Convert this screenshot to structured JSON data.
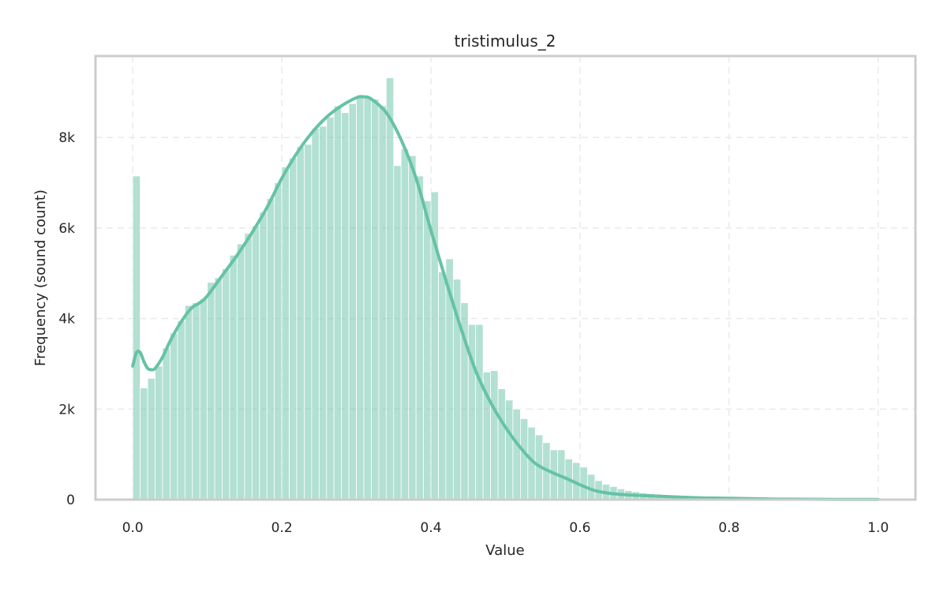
{
  "chart_data": {
    "type": "bar",
    "title": "tristimulus_2",
    "xlabel": "Value",
    "ylabel": "Frequency (sound count)",
    "xlim": [
      -0.05,
      1.05
    ],
    "ylim": [
      0,
      9800
    ],
    "x_ticks": [
      {
        "value": 0.0,
        "label": "0.0"
      },
      {
        "value": 0.2,
        "label": "0.2"
      },
      {
        "value": 0.4,
        "label": "0.4"
      },
      {
        "value": 0.6,
        "label": "0.6"
      },
      {
        "value": 0.8,
        "label": "0.8"
      },
      {
        "value": 1.0,
        "label": "1.0"
      }
    ],
    "y_ticks": [
      {
        "value": 0,
        "label": "0"
      },
      {
        "value": 2000,
        "label": "2k"
      },
      {
        "value": 4000,
        "label": "4k"
      },
      {
        "value": 6000,
        "label": "6k"
      },
      {
        "value": 8000,
        "label": "8k"
      }
    ],
    "grid": true,
    "bar_color": "#66c2a5",
    "kde_color": "#66c2a5",
    "histogram": {
      "bin_start": 0.0,
      "bin_width": 0.01,
      "counts": [
        7150,
        2470,
        2680,
        2950,
        3350,
        3680,
        3950,
        4290,
        4350,
        4430,
        4800,
        4900,
        5100,
        5400,
        5650,
        5880,
        6050,
        6350,
        6650,
        7000,
        7350,
        7550,
        7800,
        7850,
        8200,
        8250,
        8450,
        8700,
        8550,
        8750,
        8900,
        8900,
        8850,
        8700,
        9320,
        7380,
        7750,
        7600,
        7150,
        6600,
        6800,
        5030,
        5320,
        4870,
        4350,
        3870,
        3870,
        2820,
        2850,
        2450,
        2200,
        2000,
        1790,
        1600,
        1430,
        1260,
        1100,
        1100,
        900,
        820,
        720,
        560,
        420,
        340,
        290,
        240,
        200,
        175,
        150,
        135,
        120,
        100,
        82,
        70,
        60,
        55,
        50,
        45,
        42,
        40,
        38,
        35,
        32,
        28,
        25,
        22,
        20,
        18,
        16,
        15,
        13,
        12,
        11,
        10,
        9,
        8,
        7,
        6,
        5,
        5
      ]
    },
    "kde": {
      "x": [
        0.0,
        0.005,
        0.01,
        0.015,
        0.02,
        0.025,
        0.03,
        0.04,
        0.05,
        0.06,
        0.07,
        0.08,
        0.09,
        0.1,
        0.12,
        0.14,
        0.16,
        0.18,
        0.2,
        0.22,
        0.24,
        0.26,
        0.28,
        0.3,
        0.31,
        0.32,
        0.34,
        0.36,
        0.38,
        0.4,
        0.42,
        0.44,
        0.46,
        0.48,
        0.5,
        0.52,
        0.54,
        0.56,
        0.58,
        0.6,
        0.62,
        0.64,
        0.66,
        0.7,
        0.75,
        0.8,
        0.85,
        0.9,
        0.95,
        1.0
      ],
      "y": [
        2950,
        3250,
        3250,
        3050,
        2900,
        2870,
        2900,
        3150,
        3500,
        3800,
        4050,
        4250,
        4350,
        4500,
        4950,
        5400,
        5900,
        6450,
        7100,
        7650,
        8100,
        8450,
        8700,
        8880,
        8900,
        8850,
        8550,
        7950,
        7100,
        5950,
        4850,
        3800,
        2850,
        2150,
        1600,
        1150,
        800,
        620,
        480,
        330,
        200,
        140,
        110,
        80,
        45,
        30,
        15,
        8,
        4,
        3
      ]
    }
  }
}
